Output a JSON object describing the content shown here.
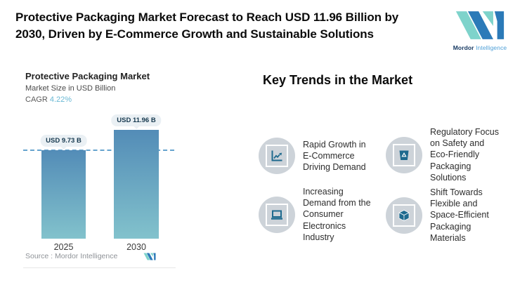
{
  "header": {
    "title": "Protective Packaging Market Forecast to Reach USD 11.96 Billion by\n2030, Driven by E-Commerce Growth and Sustainable Solutions",
    "brand": {
      "name_primary": "Mordor",
      "name_secondary": "Intelligence"
    }
  },
  "chart": {
    "title": "Protective Packaging Market",
    "subtitle": "Market Size in USD Billion",
    "cagr_label": "CAGR",
    "cagr_value": "4.22%",
    "source_label": "Source :",
    "source_value": "Mordor Intelligence"
  },
  "chart_data": {
    "type": "bar",
    "title": "Protective Packaging Market",
    "ylabel": "Market Size in USD Billion",
    "categories": [
      "2025",
      "2030"
    ],
    "values": [
      9.73,
      11.96
    ],
    "bar_labels": [
      "USD 9.73 B",
      "USD 11.96 B"
    ],
    "cagr_percent": 4.22,
    "reference_line": 9.73,
    "grid": false,
    "legend": false
  },
  "trends": {
    "heading": "Key Trends in the Market",
    "items": [
      {
        "icon": "line-chart-icon",
        "text": "Rapid Growth in\nE-Commerce\nDriving Demand"
      },
      {
        "icon": "laptop-icon",
        "text": "Increasing\nDemand from the\nConsumer\nElectronics\nIndustry"
      },
      {
        "icon": "recycle-bin-icon",
        "text": "Regulatory Focus\non Safety and\nEco-Friendly\nPackaging\nSolutions"
      },
      {
        "icon": "cube-icon",
        "text": "Shift Towards\nFlexible and\nSpace-Efficient\nPackaging\nMaterials"
      }
    ]
  },
  "colors": {
    "logo_blue": "#2b7ab8",
    "logo_teal": "#7ed3cb",
    "cagr_accent": "#68b8d4",
    "bar_gradient_top": "#538cb7",
    "bar_gradient_bottom": "#82c2cc",
    "dashed_line": "#66a3ce",
    "icon_blue": "#1e6a8e",
    "icon_circle_bg": "#cdd3d9",
    "pill_bg": "#eaf0f4"
  }
}
